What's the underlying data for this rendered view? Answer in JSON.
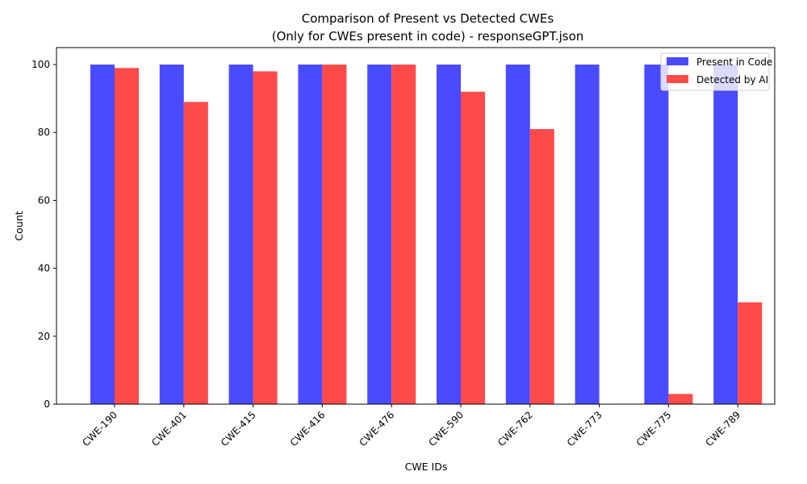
{
  "chart_data": {
    "type": "bar",
    "title": "Comparison of Present vs Detected CWEs",
    "subtitle": "(Only for CWEs present in code) - responseGPT.json",
    "xlabel": "CWE IDs",
    "ylabel": "Count",
    "categories": [
      "CWE-190",
      "CWE-401",
      "CWE-415",
      "CWE-416",
      "CWE-476",
      "CWE-590",
      "CWE-762",
      "CWE-773",
      "CWE-775",
      "CWE-789"
    ],
    "series": [
      {
        "name": "Present in Code",
        "color": "#4a4aff",
        "values": [
          100,
          100,
          100,
          100,
          100,
          100,
          100,
          100,
          100,
          100
        ]
      },
      {
        "name": "Detected by AI",
        "color": "#ff4a4a",
        "values": [
          99,
          89,
          98,
          100,
          100,
          92,
          81,
          0,
          3,
          30
        ]
      }
    ],
    "ylim": [
      0,
      105
    ],
    "yticks": [
      0,
      20,
      40,
      60,
      80,
      100
    ],
    "grid": false,
    "legend": "top-right",
    "xtick_rotation": 45
  }
}
